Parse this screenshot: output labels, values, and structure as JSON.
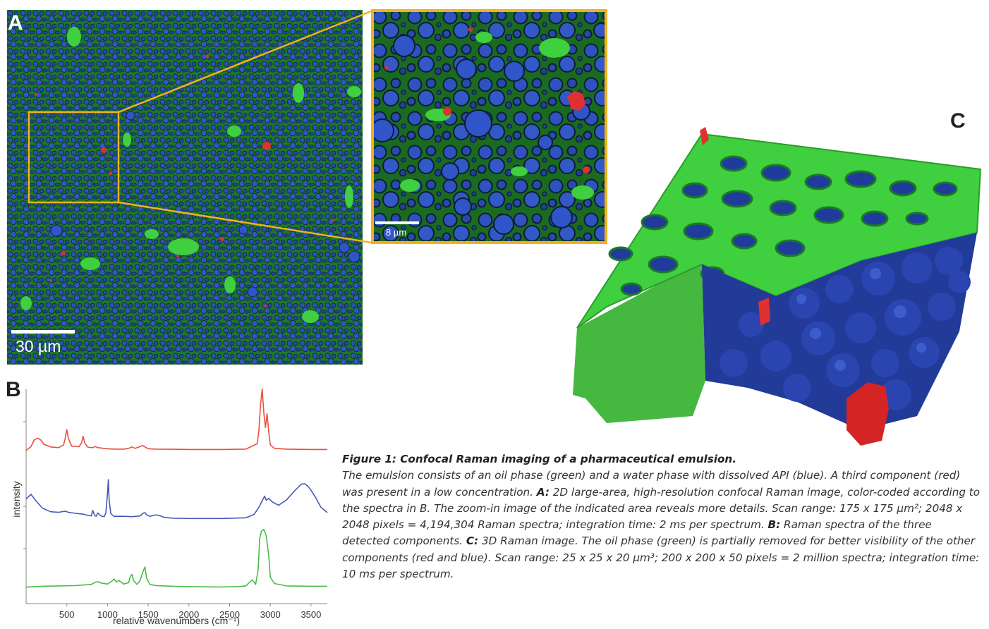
{
  "panel_a": {
    "label": "A",
    "scalebar": "30 µm",
    "zoom_scalebar": "8 µm"
  },
  "panel_b": {
    "label": "B"
  },
  "panel_c": {
    "label": "C"
  },
  "colors": {
    "oil_phase": "#3fcf3f",
    "water_api": "#2f55c8",
    "third_component": "#e03030",
    "zoom_frame": "#f2b21b"
  },
  "chart_data": {
    "type": "line",
    "xlabel": "relative wavenumbers (cm⁻¹)",
    "ylabel": "intensity",
    "xticks": [
      500,
      1000,
      1500,
      2000,
      2500,
      3000,
      3500
    ],
    "xlim": [
      0,
      3700
    ],
    "series": [
      {
        "color": "#e8503c",
        "x": [
          0,
          60,
          100,
          140,
          180,
          220,
          300,
          400,
          460,
          480,
          500,
          520,
          560,
          650,
          680,
          700,
          720,
          760,
          820,
          850,
          880,
          1000,
          1100,
          1200,
          1260,
          1300,
          1340,
          1400,
          1430,
          1460,
          1500,
          1600,
          1800,
          2000,
          2400,
          2700,
          2840,
          2860,
          2880,
          2900,
          2920,
          2940,
          2960,
          2980,
          3000,
          3050,
          3200,
          3500,
          3700
        ],
        "y": [
          0.05,
          0.25,
          0.62,
          0.72,
          0.62,
          0.38,
          0.24,
          0.2,
          0.35,
          0.7,
          1.18,
          0.7,
          0.28,
          0.25,
          0.45,
          0.82,
          0.45,
          0.22,
          0.2,
          0.26,
          0.2,
          0.14,
          0.12,
          0.12,
          0.16,
          0.24,
          0.16,
          0.26,
          0.32,
          0.24,
          0.14,
          0.12,
          0.11,
          0.1,
          0.1,
          0.12,
          0.42,
          1.2,
          2.55,
          3.4,
          2.1,
          1.3,
          2.05,
          1.1,
          0.35,
          0.16,
          0.12,
          0.1,
          0.1
        ]
      },
      {
        "color": "#4559b8",
        "x": [
          0,
          60,
          120,
          200,
          300,
          400,
          480,
          520,
          580,
          650,
          700,
          750,
          800,
          820,
          840,
          860,
          880,
          920,
          960,
          980,
          1000,
          1010,
          1020,
          1040,
          1080,
          1200,
          1300,
          1400,
          1440,
          1460,
          1480,
          1520,
          1600,
          1650,
          1700,
          1800,
          2000,
          2400,
          2700,
          2800,
          2860,
          2900,
          2930,
          2950,
          2980,
          3020,
          3100,
          3200,
          3300,
          3380,
          3420,
          3460,
          3500,
          3560,
          3620,
          3700
        ],
        "y": [
          1.25,
          1.5,
          1.15,
          0.75,
          0.55,
          0.52,
          0.58,
          0.52,
          0.48,
          0.44,
          0.42,
          0.36,
          0.32,
          0.62,
          0.36,
          0.3,
          0.48,
          0.32,
          0.28,
          0.5,
          1.55,
          2.3,
          1.2,
          0.45,
          0.3,
          0.3,
          0.28,
          0.32,
          0.48,
          0.5,
          0.38,
          0.3,
          0.38,
          0.32,
          0.24,
          0.2,
          0.18,
          0.18,
          0.22,
          0.4,
          0.8,
          1.15,
          1.4,
          1.18,
          1.28,
          1.1,
          0.9,
          1.2,
          1.7,
          2.05,
          2.08,
          1.95,
          1.72,
          1.3,
          0.8,
          0.5
        ]
      },
      {
        "color": "#4cba48",
        "x": [
          0,
          100,
          200,
          400,
          600,
          800,
          850,
          880,
          920,
          1000,
          1060,
          1080,
          1110,
          1140,
          1200,
          1260,
          1280,
          1300,
          1320,
          1360,
          1400,
          1440,
          1460,
          1480,
          1520,
          1600,
          1700,
          1800,
          2000,
          2400,
          2600,
          2700,
          2740,
          2780,
          2820,
          2850,
          2870,
          2890,
          2920,
          2950,
          2980,
          3000,
          3050,
          3200,
          3500,
          3700
        ],
        "y": [
          0.05,
          0.08,
          0.1,
          0.12,
          0.14,
          0.2,
          0.32,
          0.35,
          0.28,
          0.22,
          0.4,
          0.5,
          0.34,
          0.42,
          0.22,
          0.3,
          0.62,
          0.75,
          0.42,
          0.2,
          0.42,
          0.95,
          1.15,
          0.55,
          0.2,
          0.14,
          0.12,
          0.1,
          0.08,
          0.06,
          0.08,
          0.12,
          0.3,
          0.45,
          0.2,
          1.0,
          2.7,
          3.1,
          3.2,
          2.85,
          1.8,
          0.6,
          0.25,
          0.12,
          0.1,
          0.1
        ]
      }
    ]
  },
  "caption": {
    "title": "Figure 1: Confocal Raman imaging of a pharmaceutical emulsion.",
    "body1": "The emulsion consists of an oil phase (green) and a water phase with dissolved API (blue). A third component (red) was present in a low concentration.",
    "a_label": "A:",
    "a_text": "2D large-area, high-resolution confocal Raman image, color-coded according to the spectra in B. The zoom-in image of the indicated area reveals more details. Scan range: 175 x 175 µm²; 2048 x 2048 pixels = 4,194,304 Raman spectra; integration time: 2 ms per spectrum.",
    "b_label": "B:",
    "b_text": "Raman spectra of the three detected components.",
    "c_label": "C:",
    "c_text": "3D Raman image. The oil phase (green) is partially removed for better visibility of the other components (red and blue). Scan range: 25 x 25 x 20 µm³; 200 x 200 x 50 pixels = 2 million spectra; integration time: 10 ms per spectrum."
  }
}
